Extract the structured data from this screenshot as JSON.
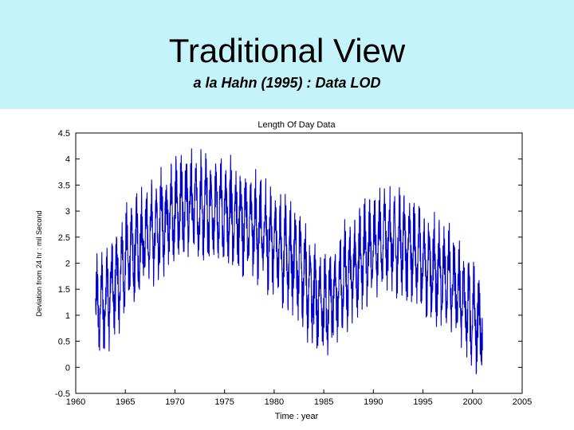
{
  "slide": {
    "title": "Traditional View",
    "subtitle": "a la Hahn  (1995)  : Data LOD",
    "header_bg": "#c4f4fa"
  },
  "chart_data": {
    "type": "line",
    "title": "Length Of Day Data",
    "xlabel": "Time : year",
    "ylabel": "Deviation from 24 hr : mil Second",
    "xlim": [
      1960,
      2005
    ],
    "ylim": [
      -0.5,
      4.5
    ],
    "xticks": [
      1960,
      1965,
      1970,
      1975,
      1980,
      1985,
      1990,
      1995,
      2000,
      2005
    ],
    "xtick_labels": [
      "1960",
      "1965",
      "1970",
      "1975",
      "1980",
      "1985",
      "1990",
      "1995",
      "2000",
      "2005"
    ],
    "yticks": [
      -0.5,
      0,
      0.5,
      1,
      1.5,
      2,
      2.5,
      3,
      3.5,
      4,
      4.5
    ],
    "ytick_labels": [
      "-0.5",
      "0",
      "0.5",
      "1",
      "1.5",
      "2",
      "2.5",
      "3",
      "3.5",
      "4",
      "4.5"
    ],
    "grid": false,
    "series_color": "#0000cc",
    "trend": {
      "years": [
        1962,
        1963,
        1964,
        1965,
        1966,
        1967,
        1968,
        1969,
        1970,
        1971,
        1972,
        1973,
        1974,
        1975,
        1976,
        1977,
        1978,
        1979,
        1980,
        1981,
        1982,
        1983,
        1984,
        1985,
        1986,
        1987,
        1988,
        1989,
        1990,
        1991,
        1992,
        1993,
        1994,
        1995,
        1996,
        1997,
        1998,
        1999,
        2000,
        2001
      ],
      "values": [
        1.15,
        1.3,
        1.65,
        2.0,
        2.3,
        2.5,
        2.65,
        2.85,
        3.0,
        3.15,
        3.15,
        3.05,
        3.05,
        2.95,
        2.9,
        2.8,
        2.7,
        2.55,
        2.4,
        2.2,
        2.1,
        1.8,
        1.4,
        1.2,
        1.4,
        1.7,
        1.9,
        2.1,
        2.3,
        2.45,
        2.4,
        2.35,
        2.3,
        2.05,
        1.9,
        1.75,
        1.6,
        1.3,
        0.95,
        0.75
      ]
    },
    "seasonal_amplitude": 0.6,
    "noise_amplitude": 0.3
  }
}
